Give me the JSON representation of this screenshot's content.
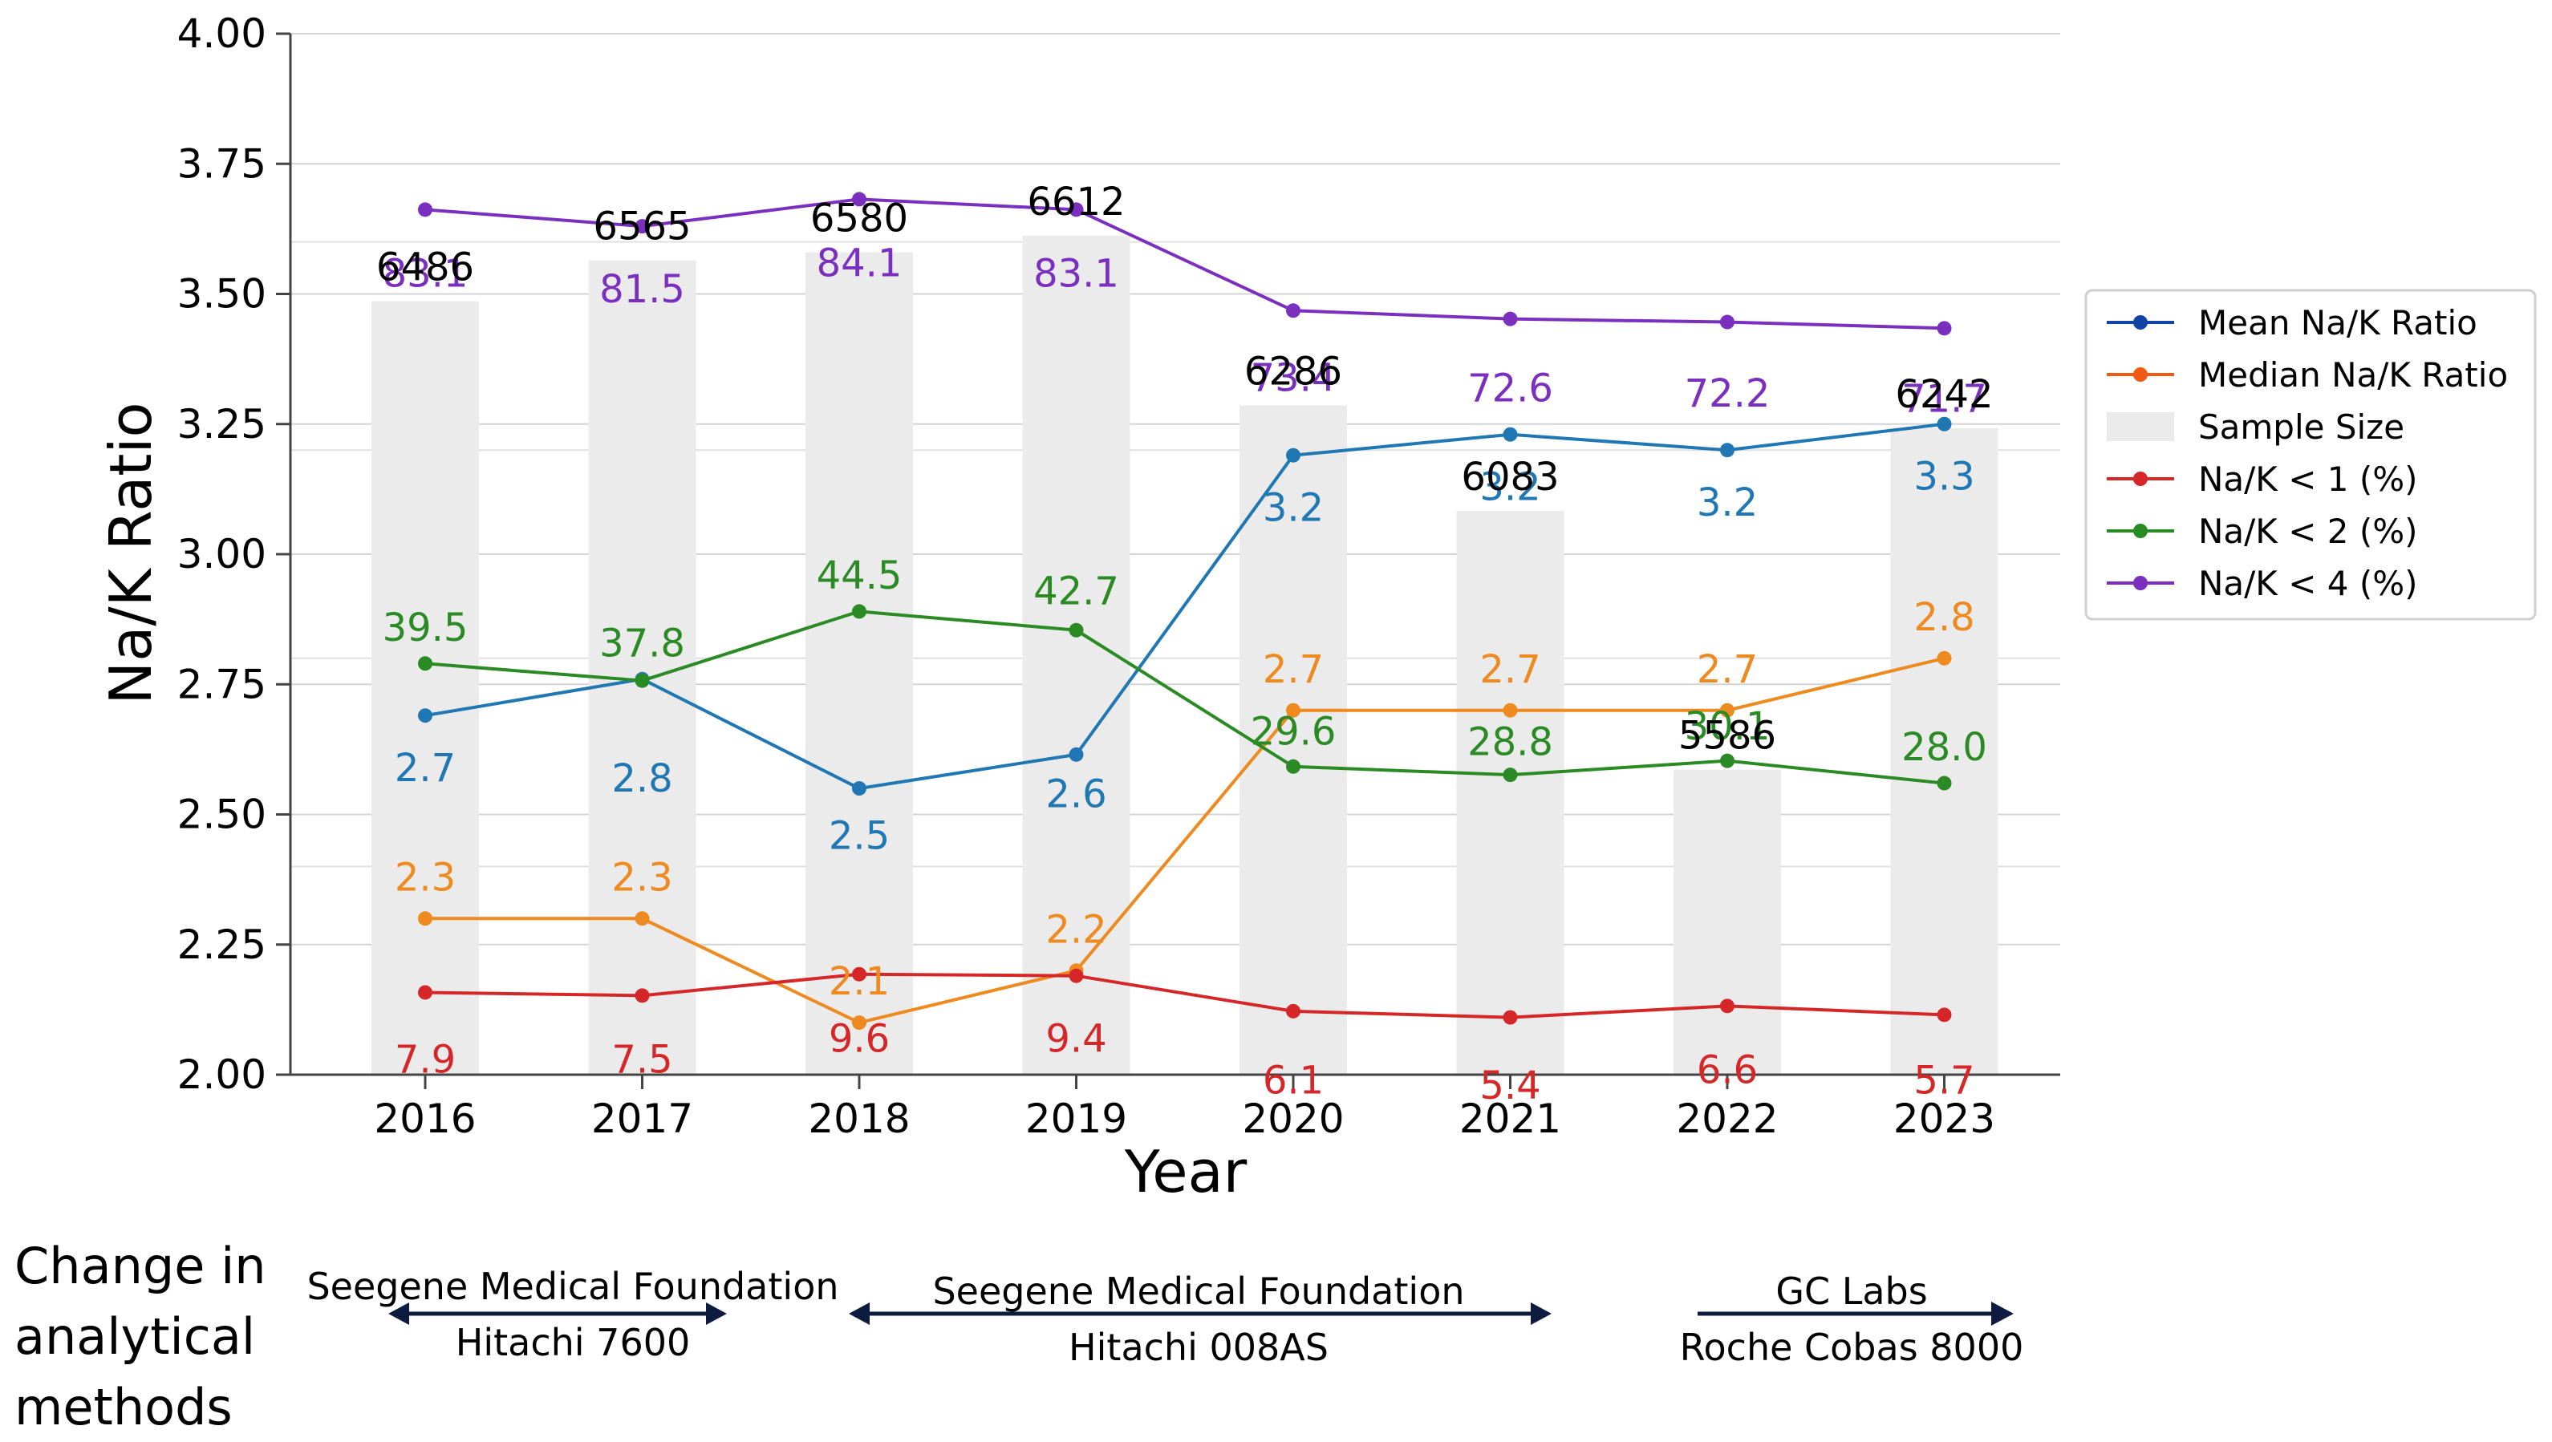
{
  "chart_data": {
    "type": "line",
    "ylabel": "Na/K Ratio",
    "xlabel": "Year",
    "ylim": [
      2.0,
      4.0
    ],
    "yticks": [
      "2.00",
      "2.25",
      "2.50",
      "2.75",
      "3.00",
      "3.25",
      "3.50",
      "3.75",
      "4.00"
    ],
    "categories": [
      "2016",
      "2017",
      "2018",
      "2019",
      "2020",
      "2021",
      "2022",
      "2023"
    ],
    "sample_size": {
      "name": "Sample Size",
      "values": [
        6486,
        6565,
        6580,
        6612,
        6286,
        6083,
        5586,
        6242
      ],
      "labels": [
        "6486",
        "6565",
        "6580",
        "6612",
        "6286",
        "6083",
        "5586",
        "6242"
      ],
      "right_axis_range": [
        5000,
        7000
      ],
      "color": "#ebebeb"
    },
    "series": [
      {
        "name": "Mean Na/K Ratio",
        "color": "#1f77b4",
        "legend_color": "#1244a8",
        "values": [
          2.69,
          2.76,
          2.55,
          2.615,
          3.19,
          3.23,
          3.2,
          3.25
        ],
        "labels": [
          "2.7",
          "2.8",
          "2.5",
          "2.6",
          "3.2",
          "3.2",
          "3.2",
          "3.3"
        ],
        "label_values": [
          2.59,
          2.57,
          2.46,
          2.54,
          3.09,
          3.13,
          3.1,
          3.15
        ]
      },
      {
        "name": "Median Na/K Ratio",
        "color": "#ee8a1f",
        "legend_color": "#f05a13",
        "values": [
          2.3,
          2.3,
          2.1,
          2.2,
          2.7,
          2.7,
          2.7,
          2.8
        ],
        "labels": [
          "2.3",
          "2.3",
          "2.1",
          "2.2",
          "2.7",
          "2.7",
          "2.7",
          "2.8"
        ],
        "label_values": [
          2.38,
          2.38,
          2.18,
          2.28,
          2.78,
          2.78,
          2.78,
          2.88
        ]
      },
      {
        "name": "Na/K < 1 (%)",
        "color": "#d62728",
        "legend_color": "#d62728",
        "values": [
          2.158,
          2.152,
          2.193,
          2.19,
          2.122,
          2.11,
          2.132,
          2.115
        ],
        "labels": [
          "7.9",
          "7.5",
          "9.6",
          "9.4",
          "6.1",
          "5.4",
          "6.6",
          "5.7"
        ],
        "label_values": [
          2.03,
          2.03,
          2.07,
          2.07,
          1.99,
          1.98,
          2.01,
          1.99
        ]
      },
      {
        "name": "Na/K < 2 (%)",
        "color": "#2a8a23",
        "legend_color": "#2a8a23",
        "values": [
          2.79,
          2.757,
          2.89,
          2.854,
          2.592,
          2.576,
          2.603,
          2.56
        ],
        "labels": [
          "39.5",
          "37.8",
          "44.5",
          "42.7",
          "29.6",
          "28.8",
          "30.1",
          "28.0"
        ],
        "label_values": [
          2.86,
          2.83,
          2.96,
          2.93,
          2.66,
          2.64,
          2.67,
          2.63
        ]
      },
      {
        "name": "Na/K < 4 (%)",
        "color": "#7b2fbf",
        "legend_color": "#7b2fbf",
        "values": [
          3.662,
          3.63,
          3.682,
          3.662,
          3.468,
          3.452,
          3.446,
          3.434
        ],
        "labels": [
          "83.1",
          "81.5",
          "84.1",
          "83.1",
          "73.4",
          "72.6",
          "72.2",
          "71.7"
        ],
        "label_values": [
          3.54,
          3.51,
          3.56,
          3.54,
          3.34,
          3.32,
          3.31,
          3.3
        ]
      }
    ],
    "legend": {
      "position": "right",
      "entries": [
        "Mean Na/K Ratio",
        "Median Na/K Ratio",
        "Sample Size",
        "Na/K < 1 (%)",
        "Na/K < 2 (%)",
        "Na/K < 4 (%)"
      ]
    }
  },
  "methods": {
    "heading": [
      "Change in",
      "analytical",
      "methods"
    ],
    "periods": [
      {
        "lab": "Seegene Medical Foundation",
        "instrument": "Hitachi 7600",
        "arrow": "both"
      },
      {
        "lab": "Seegene Medical Foundation",
        "instrument": "Hitachi 008AS",
        "arrow": "both"
      },
      {
        "lab": "GC Labs",
        "instrument": "Roche Cobas 8000",
        "arrow": "right"
      }
    ],
    "arrow_color": "#0d1b3e"
  }
}
